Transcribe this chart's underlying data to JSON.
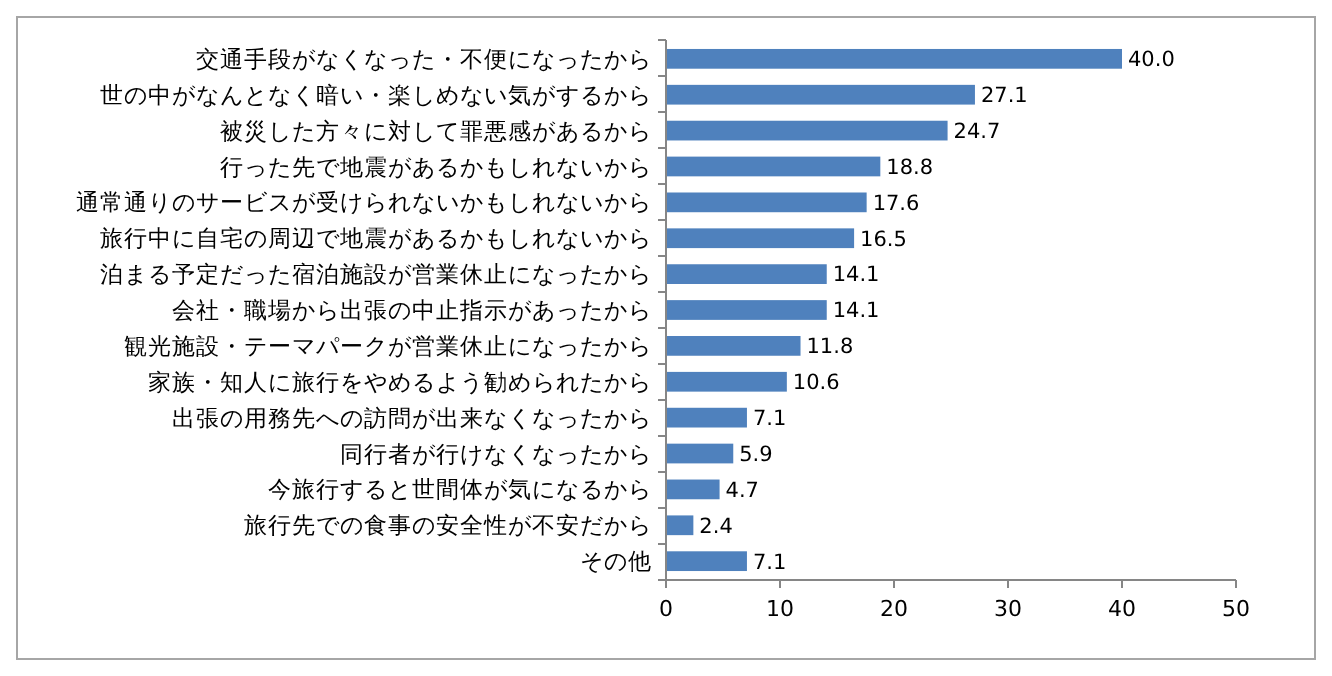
{
  "chart_data": {
    "type": "bar",
    "orientation": "horizontal",
    "categories": [
      "交通手段がなくなった・不便になったから",
      "世の中がなんとなく暗い・楽しめない気がするから",
      "被災した方々に対して罪悪感があるから",
      "行った先で地震があるかもしれないから",
      "通常通りのサービスが受けられないかもしれないから",
      "旅行中に自宅の周辺で地震があるかもしれないから",
      "泊まる予定だった宿泊施設が営業休止になったから",
      "会社・職場から出張の中止指示があったから",
      "観光施設・テーマパークが営業休止になったから",
      "家族・知人に旅行をやめるよう勧められたから",
      "出張の用務先への訪問が出来なくなったから",
      "同行者が行けなくなったから",
      "今旅行すると世間体が気になるから",
      "旅行先での食事の安全性が不安だから",
      "その他"
    ],
    "values": [
      40.0,
      27.1,
      24.7,
      18.8,
      17.6,
      16.5,
      14.1,
      14.1,
      11.8,
      10.6,
      7.1,
      5.9,
      4.7,
      2.4,
      7.1
    ],
    "value_labels": [
      "40.0",
      "27.1",
      "24.7",
      "18.8",
      "17.6",
      "16.5",
      "14.1",
      "14.1",
      "11.8",
      "10.6",
      "7.1",
      "5.9",
      "4.7",
      "2.4",
      "7.1"
    ],
    "color": "#4f81bd",
    "xlim": [
      0,
      50
    ],
    "xticks": [
      0,
      10,
      20,
      30,
      40,
      50
    ]
  }
}
